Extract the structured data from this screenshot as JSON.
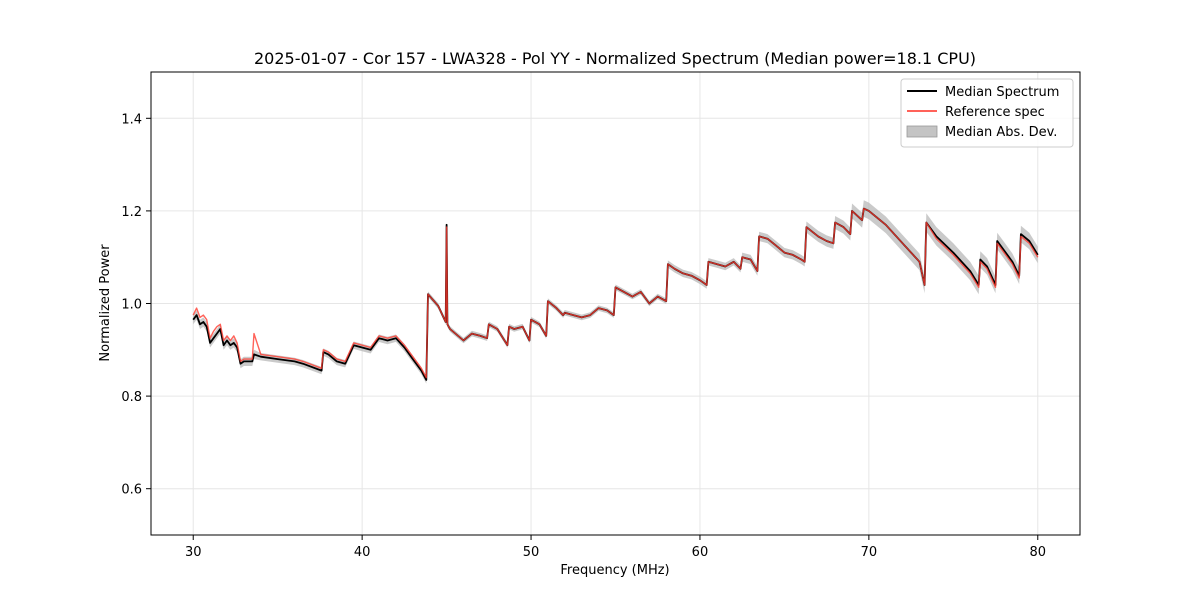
{
  "chart_data": {
    "type": "line",
    "title": "2025-01-07 - Cor 157 - LWA328 - Pol YY - Normalized Spectrum (Median power=18.1 CPU)",
    "xlabel": "Frequency (MHz)",
    "ylabel": "Normalized Power",
    "xlim": [
      27.5,
      82.5
    ],
    "ylim": [
      0.5,
      1.5
    ],
    "xticks": [
      30,
      40,
      50,
      60,
      70,
      80
    ],
    "yticks": [
      0.6,
      0.8,
      1.0,
      1.2,
      1.4
    ],
    "xtick_labels": [
      "30",
      "40",
      "50",
      "60",
      "70",
      "80"
    ],
    "ytick_labels": [
      "0.6",
      "0.8",
      "1.0",
      "1.2",
      "1.4"
    ],
    "grid": true,
    "legend_position": "top-right",
    "colors": {
      "median": "#000000",
      "reference": "#ff3b30",
      "mad": "#b8b8b8"
    },
    "series": [
      {
        "name": "Median Spectrum",
        "x": [
          30.0,
          30.2,
          30.4,
          30.6,
          30.8,
          31.0,
          31.2,
          31.4,
          31.6,
          31.8,
          32.0,
          32.2,
          32.4,
          32.6,
          32.8,
          33.0,
          33.5,
          33.6,
          34.0,
          35.0,
          36.0,
          36.5,
          37.6,
          37.7,
          38.0,
          38.5,
          39.0,
          39.5,
          40.0,
          40.5,
          41.0,
          41.5,
          42.0,
          42.5,
          43.0,
          43.5,
          43.8,
          43.9,
          44.5,
          44.95,
          45.0,
          45.05,
          45.2,
          46.0,
          46.5,
          47.0,
          47.4,
          47.5,
          48.0,
          48.6,
          48.7,
          49.0,
          49.5,
          49.9,
          50.0,
          50.5,
          50.9,
          51.0,
          51.5,
          51.9,
          52.0,
          52.5,
          53.0,
          53.5,
          54.0,
          54.5,
          54.9,
          55.0,
          56.0,
          56.5,
          57.0,
          57.5,
          58.0,
          58.1,
          58.5,
          59.0,
          59.5,
          60.0,
          60.4,
          60.5,
          61.0,
          61.5,
          62.0,
          62.4,
          62.5,
          63.0,
          63.4,
          63.5,
          64.0,
          64.5,
          65.0,
          65.5,
          66.0,
          66.2,
          66.3,
          67.0,
          67.5,
          67.9,
          68.0,
          68.5,
          68.9,
          69.0,
          69.6,
          69.7,
          70.0,
          71.0,
          72.0,
          73.0,
          73.3,
          73.4,
          74.0,
          75.0,
          76.0,
          76.5,
          76.6,
          77.0,
          77.5,
          77.6,
          78.0,
          78.5,
          78.9,
          79.0,
          79.5,
          80.0
        ],
        "values": [
          0.965,
          0.975,
          0.955,
          0.96,
          0.95,
          0.915,
          0.925,
          0.935,
          0.945,
          0.91,
          0.92,
          0.91,
          0.915,
          0.905,
          0.87,
          0.875,
          0.875,
          0.89,
          0.885,
          0.88,
          0.875,
          0.87,
          0.855,
          0.895,
          0.89,
          0.875,
          0.87,
          0.91,
          0.905,
          0.9,
          0.925,
          0.92,
          0.925,
          0.905,
          0.88,
          0.855,
          0.835,
          1.02,
          0.995,
          0.96,
          1.17,
          0.955,
          0.945,
          0.92,
          0.935,
          0.93,
          0.925,
          0.955,
          0.945,
          0.91,
          0.95,
          0.945,
          0.95,
          0.92,
          0.965,
          0.955,
          0.93,
          1.005,
          0.99,
          0.975,
          0.98,
          0.975,
          0.97,
          0.975,
          0.99,
          0.985,
          0.975,
          1.035,
          1.015,
          1.025,
          1.0,
          1.015,
          1.005,
          1.085,
          1.075,
          1.065,
          1.06,
          1.05,
          1.04,
          1.09,
          1.085,
          1.08,
          1.09,
          1.075,
          1.1,
          1.095,
          1.07,
          1.145,
          1.14,
          1.125,
          1.11,
          1.105,
          1.095,
          1.09,
          1.165,
          1.145,
          1.135,
          1.13,
          1.175,
          1.165,
          1.15,
          1.2,
          1.18,
          1.205,
          1.2,
          1.17,
          1.13,
          1.09,
          1.04,
          1.175,
          1.145,
          1.11,
          1.07,
          1.04,
          1.095,
          1.08,
          1.04,
          1.135,
          1.115,
          1.09,
          1.06,
          1.15,
          1.135,
          1.105
        ]
      },
      {
        "name": "Reference spec",
        "x": [
          30.0,
          30.2,
          30.4,
          30.6,
          30.8,
          31.0,
          31.2,
          31.4,
          31.6,
          31.8,
          32.0,
          32.2,
          32.4,
          32.6,
          32.8,
          33.0,
          33.5,
          33.6,
          34.0,
          35.0,
          36.0,
          36.5,
          37.6,
          37.7,
          38.0,
          38.5,
          39.0,
          39.5,
          40.0,
          40.5,
          41.0,
          41.5,
          42.0,
          42.5,
          43.0,
          43.5,
          43.8,
          43.9,
          44.5,
          44.95,
          45.0,
          45.05,
          45.2,
          46.0,
          46.5,
          47.0,
          47.4,
          47.5,
          48.0,
          48.6,
          48.7,
          49.0,
          49.5,
          49.9,
          50.0,
          50.5,
          50.9,
          51.0,
          51.5,
          51.9,
          52.0,
          52.5,
          53.0,
          53.5,
          54.0,
          54.5,
          54.9,
          55.0,
          56.0,
          56.5,
          57.0,
          57.5,
          58.0,
          58.1,
          58.5,
          59.0,
          59.5,
          60.0,
          60.4,
          60.5,
          61.0,
          61.5,
          62.0,
          62.4,
          62.5,
          63.0,
          63.4,
          63.5,
          64.0,
          64.5,
          65.0,
          65.5,
          66.0,
          66.2,
          66.3,
          67.0,
          67.5,
          67.9,
          68.0,
          68.5,
          68.9,
          69.0,
          69.6,
          69.7,
          70.0,
          71.0,
          72.0,
          73.0,
          73.3,
          73.4,
          74.0,
          75.0,
          76.0,
          76.5,
          76.6,
          77.0,
          77.5,
          77.6,
          78.0,
          78.5,
          78.9,
          79.0,
          79.5,
          80.0
        ],
        "values": [
          0.975,
          0.99,
          0.97,
          0.975,
          0.965,
          0.925,
          0.94,
          0.95,
          0.955,
          0.92,
          0.93,
          0.92,
          0.93,
          0.915,
          0.875,
          0.88,
          0.88,
          0.935,
          0.89,
          0.885,
          0.88,
          0.875,
          0.86,
          0.9,
          0.895,
          0.88,
          0.875,
          0.915,
          0.91,
          0.905,
          0.93,
          0.925,
          0.93,
          0.91,
          0.885,
          0.86,
          0.84,
          1.02,
          0.995,
          0.96,
          1.165,
          0.955,
          0.945,
          0.92,
          0.935,
          0.93,
          0.925,
          0.955,
          0.945,
          0.91,
          0.95,
          0.945,
          0.95,
          0.92,
          0.965,
          0.955,
          0.93,
          1.005,
          0.99,
          0.975,
          0.98,
          0.975,
          0.97,
          0.975,
          0.99,
          0.985,
          0.975,
          1.035,
          1.015,
          1.025,
          1.0,
          1.015,
          1.005,
          1.085,
          1.075,
          1.065,
          1.06,
          1.05,
          1.04,
          1.09,
          1.085,
          1.08,
          1.09,
          1.075,
          1.1,
          1.095,
          1.07,
          1.145,
          1.14,
          1.125,
          1.11,
          1.105,
          1.095,
          1.09,
          1.165,
          1.145,
          1.135,
          1.13,
          1.175,
          1.165,
          1.15,
          1.2,
          1.18,
          1.205,
          1.2,
          1.17,
          1.13,
          1.09,
          1.04,
          1.175,
          1.14,
          1.105,
          1.065,
          1.035,
          1.09,
          1.075,
          1.035,
          1.13,
          1.11,
          1.085,
          1.055,
          1.145,
          1.13,
          1.1
        ]
      },
      {
        "name": "Median Abs. Dev.",
        "type": "band",
        "deviation": [
          0.01,
          0.01,
          0.01,
          0.01,
          0.01,
          0.01,
          0.01,
          0.01,
          0.01,
          0.01,
          0.01,
          0.01,
          0.01,
          0.01,
          0.01,
          0.01,
          0.01,
          0.01,
          0.008,
          0.008,
          0.008,
          0.008,
          0.008,
          0.008,
          0.008,
          0.008,
          0.008,
          0.008,
          0.008,
          0.008,
          0.008,
          0.008,
          0.008,
          0.008,
          0.008,
          0.008,
          0.008,
          0.006,
          0.006,
          0.006,
          0.006,
          0.006,
          0.006,
          0.006,
          0.006,
          0.006,
          0.006,
          0.006,
          0.006,
          0.006,
          0.006,
          0.006,
          0.006,
          0.006,
          0.006,
          0.006,
          0.006,
          0.006,
          0.006,
          0.006,
          0.006,
          0.006,
          0.006,
          0.006,
          0.006,
          0.006,
          0.006,
          0.006,
          0.006,
          0.006,
          0.006,
          0.006,
          0.006,
          0.008,
          0.008,
          0.008,
          0.008,
          0.008,
          0.008,
          0.008,
          0.008,
          0.008,
          0.008,
          0.008,
          0.01,
          0.01,
          0.01,
          0.01,
          0.01,
          0.01,
          0.01,
          0.01,
          0.01,
          0.01,
          0.012,
          0.012,
          0.012,
          0.012,
          0.014,
          0.014,
          0.014,
          0.016,
          0.016,
          0.018,
          0.018,
          0.018,
          0.018,
          0.018,
          0.018,
          0.02,
          0.02,
          0.02,
          0.02,
          0.02,
          0.018,
          0.018,
          0.018,
          0.018,
          0.018,
          0.018,
          0.018,
          0.018,
          0.018,
          0.018
        ]
      }
    ]
  }
}
